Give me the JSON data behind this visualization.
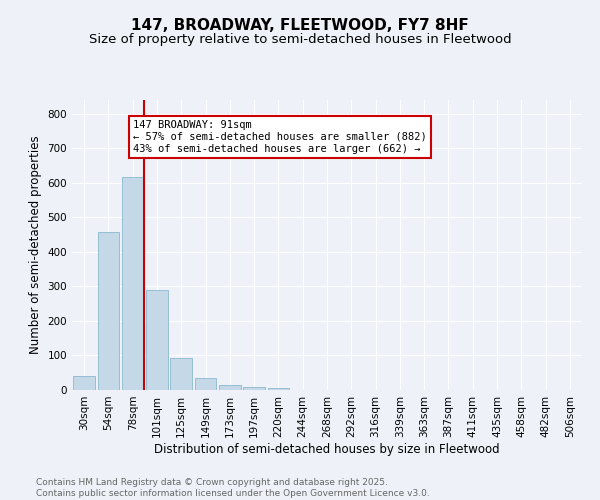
{
  "title": "147, BROADWAY, FLEETWOOD, FY7 8HF",
  "subtitle": "Size of property relative to semi-detached houses in Fleetwood",
  "xlabel": "Distribution of semi-detached houses by size in Fleetwood",
  "ylabel": "Number of semi-detached properties",
  "bar_color": "#c5d8e8",
  "bar_edge_color": "#7aafc8",
  "background_color": "#eef2f8",
  "grid_color": "#ffffff",
  "categories": [
    "30sqm",
    "54sqm",
    "78sqm",
    "101sqm",
    "125sqm",
    "149sqm",
    "173sqm",
    "197sqm",
    "220sqm",
    "244sqm",
    "268sqm",
    "292sqm",
    "316sqm",
    "339sqm",
    "363sqm",
    "387sqm",
    "411sqm",
    "435sqm",
    "458sqm",
    "482sqm",
    "506sqm"
  ],
  "values": [
    42,
    458,
    618,
    290,
    93,
    35,
    14,
    8,
    5,
    0,
    0,
    0,
    0,
    0,
    0,
    0,
    0,
    0,
    0,
    0,
    0
  ],
  "ylim": [
    0,
    840
  ],
  "yticks": [
    0,
    100,
    200,
    300,
    400,
    500,
    600,
    700,
    800
  ],
  "vline_x": 2.45,
  "property_label": "147 BROADWAY: 91sqm",
  "annotation_line1": "← 57% of semi-detached houses are smaller (882)",
  "annotation_line2": "43% of semi-detached houses are larger (662) →",
  "annotation_box_color": "#ffffff",
  "annotation_box_edge": "#cc0000",
  "vline_color": "#cc0000",
  "footer_text": "Contains HM Land Registry data © Crown copyright and database right 2025.\nContains public sector information licensed under the Open Government Licence v3.0.",
  "title_fontsize": 11,
  "subtitle_fontsize": 9.5,
  "axis_label_fontsize": 8.5,
  "tick_fontsize": 7.5,
  "annotation_fontsize": 7.5,
  "footer_fontsize": 6.5
}
